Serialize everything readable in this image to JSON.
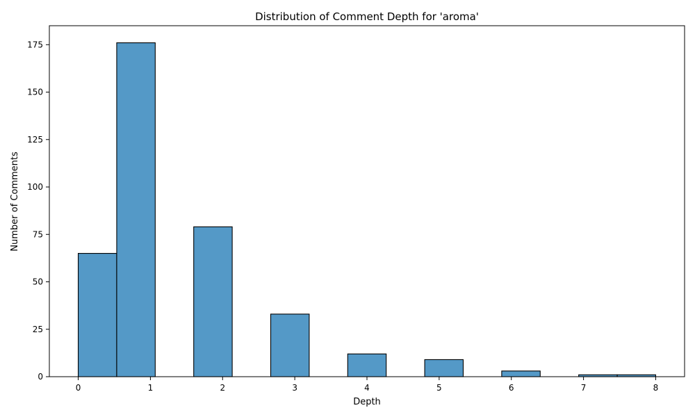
{
  "chart_data": {
    "type": "bar",
    "title": "Distribution of Comment Depth for 'aroma'",
    "xlabel": "Depth",
    "ylabel": "Number of Comments",
    "xlim": [
      -0.4,
      8.4
    ],
    "ylim": [
      0,
      185
    ],
    "xticks": [
      0,
      1,
      2,
      3,
      4,
      5,
      6,
      7,
      8
    ],
    "yticks": [
      0,
      25,
      50,
      75,
      100,
      125,
      150,
      175
    ],
    "bin_width": 0.5333,
    "bins": [
      {
        "start": 0.0,
        "end": 0.5333,
        "count": 65
      },
      {
        "start": 0.5333,
        "end": 1.0667,
        "count": 176
      },
      {
        "start": 1.0667,
        "end": 1.6,
        "count": 0
      },
      {
        "start": 1.6,
        "end": 2.1333,
        "count": 79
      },
      {
        "start": 2.1333,
        "end": 2.6667,
        "count": 0
      },
      {
        "start": 2.6667,
        "end": 3.2,
        "count": 33
      },
      {
        "start": 3.2,
        "end": 3.7333,
        "count": 0
      },
      {
        "start": 3.7333,
        "end": 4.2667,
        "count": 12
      },
      {
        "start": 4.2667,
        "end": 4.8,
        "count": 0
      },
      {
        "start": 4.8,
        "end": 5.3333,
        "count": 9
      },
      {
        "start": 5.3333,
        "end": 5.8667,
        "count": 0
      },
      {
        "start": 5.8667,
        "end": 6.4,
        "count": 3
      },
      {
        "start": 6.4,
        "end": 6.9333,
        "count": 0
      },
      {
        "start": 6.9333,
        "end": 7.4667,
        "count": 1
      },
      {
        "start": 7.4667,
        "end": 8.0,
        "count": 1
      }
    ],
    "bar_color": "#5499c7",
    "edge_color": "#000000",
    "grid": false,
    "legend": "none"
  }
}
